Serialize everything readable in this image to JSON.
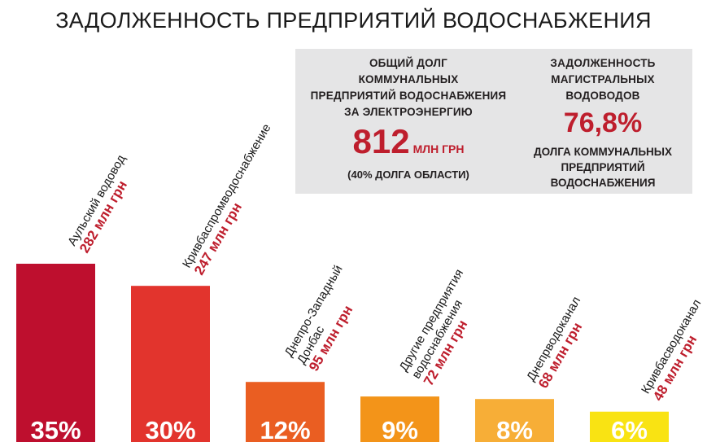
{
  "title": "ЗАДОЛЖЕННОСТЬ ПРЕДПРИЯТИЙ ВОДОСНАБЖЕНИЯ",
  "infobox": {
    "left": {
      "heading": [
        "ОБЩИЙ ДОЛГ",
        "КОММУНАЛЬНЫХ",
        "ПРЕДПРИЯТИЙ ВОДОСНАБЖЕНИЯ",
        "ЗА ЭЛЕКТРОЭНЕРГИЮ"
      ],
      "value": "812",
      "unit": "МЛН ГРН",
      "note": "(40% ДОЛГА ОБЛАСТИ)"
    },
    "right": {
      "heading": [
        "ЗАДОЛЖЕННОСТЬ",
        "МАГИСТРАЛЬНЫХ",
        "ВОДОВОДОВ"
      ],
      "value": "76,8%",
      "footer": [
        "ДОЛГА КОММУНАЛЬНЫХ",
        "ПРЕДПРИЯТИЙ",
        "ВОДОСНАБЖЕНИЯ"
      ]
    }
  },
  "chart_data": {
    "type": "bar",
    "title": "ЗАДОЛЖЕННОСТЬ ПРЕДПРИЯТИЙ ВОДОСНАБЖЕНИЯ",
    "categories": [
      "Аульский водовод",
      "Кривбаспромводоснабжение",
      "Днепро-Западный Донбас",
      "Другие предприятия водоснабжения",
      "Днепрводоканал",
      "Кривбасводоканал"
    ],
    "name_lines": [
      [
        "Аульский водовод"
      ],
      [
        "Кривбаспромводоснабжение"
      ],
      [
        "Днепро-Западный",
        "Донбас"
      ],
      [
        "Другие предприятия",
        "водоснабжения"
      ],
      [
        "Днепрводоканал"
      ],
      [
        "Кривбасводоканал"
      ]
    ],
    "values": [
      282,
      247,
      95,
      72,
      68,
      48
    ],
    "value_labels": [
      "282 млн грн",
      "247 млн грн",
      "95 млн грн",
      "72 млн грн",
      "68 млн грн",
      "48 млн грн"
    ],
    "percent_labels": [
      "35%",
      "30%",
      "12%",
      "9%",
      "8%",
      "6%"
    ],
    "colors": [
      "#be0f2e",
      "#e2342d",
      "#ea5e22",
      "#f39419",
      "#f7ae37",
      "#f9e313"
    ],
    "ylim": [
      0,
      282
    ],
    "grid": false,
    "legend": "none"
  }
}
